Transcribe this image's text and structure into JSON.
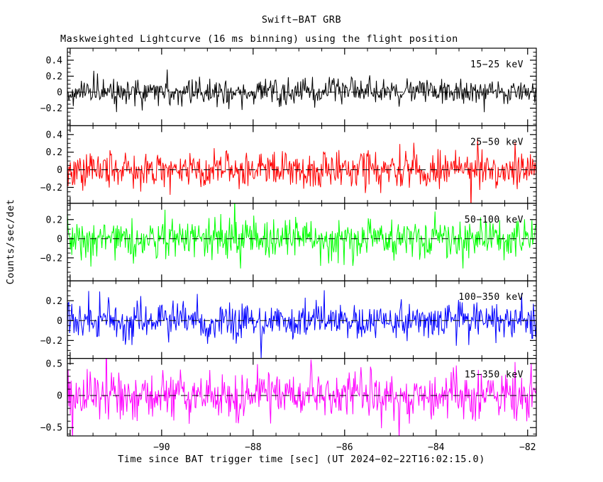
{
  "canvas": {
    "background": "#ffffff",
    "frame_color": "#000000"
  },
  "chart_data": {
    "type": "line",
    "title": "Swift−BAT GRB",
    "subtitle": "Maskweighted Lightcurve (16 ms binning) using the flight position",
    "xlabel": "Time since BAT trigger time [sec] (UT 2024−02−22T16:02:15.0)",
    "ylabel": "Counts/sec/det",
    "grid": false,
    "legend_position": "inside-top-right-per-panel",
    "x_range": [
      -92.06,
      -81.81
    ],
    "x_major_ticks": [
      -90,
      -88,
      -86,
      -84,
      -82
    ],
    "x_minor_step": 0.5,
    "bin_seconds": 0.016,
    "zero_line": {
      "style": "dashed",
      "color": "#000000"
    },
    "panels": [
      {
        "label": "15−25 keV",
        "color": "#000000",
        "ylim": [
          -0.42,
          0.55
        ],
        "y_major_ticks": [
          -0.2,
          0,
          0.2,
          0.4
        ],
        "y_minor_step": 0.05,
        "noise": {
          "mean": 0,
          "sigma": 0.085,
          "seed": 1101,
          "n": 640,
          "spike_fraction": 0.02,
          "spike_scale": 1.9
        }
      },
      {
        "label": "25−50 keV",
        "color": "#ff0000",
        "ylim": [
          -0.38,
          0.5
        ],
        "y_major_ticks": [
          -0.2,
          0,
          0.2,
          0.4
        ],
        "y_minor_step": 0.05,
        "noise": {
          "mean": 0,
          "sigma": 0.105,
          "seed": 2202,
          "n": 640,
          "spike_fraction": 0.02,
          "spike_scale": 1.9
        }
      },
      {
        "label": "50−100 keV",
        "color": "#00ff00",
        "ylim": [
          -0.44,
          0.37
        ],
        "y_major_ticks": [
          -0.2,
          0,
          0.2
        ],
        "y_minor_step": 0.05,
        "noise": {
          "mean": 0,
          "sigma": 0.105,
          "seed": 3303,
          "n": 640,
          "spike_fraction": 0.025,
          "spike_scale": 1.9
        }
      },
      {
        "label": "100−350 keV",
        "color": "#0000ff",
        "ylim": [
          -0.38,
          0.4
        ],
        "y_major_ticks": [
          -0.2,
          0,
          0.2
        ],
        "y_minor_step": 0.05,
        "noise": {
          "mean": 0,
          "sigma": 0.095,
          "seed": 4404,
          "n": 640,
          "spike_fraction": 0.02,
          "spike_scale": 1.9
        }
      },
      {
        "label": "15−350 keV",
        "color": "#ff00ff",
        "ylim": [
          -0.63,
          0.58
        ],
        "y_major_ticks": [
          -0.5,
          0,
          0.5
        ],
        "y_minor_step": 0.1,
        "noise": {
          "mean": 0,
          "sigma": 0.185,
          "seed": 5505,
          "n": 640,
          "spike_fraction": 0.025,
          "spike_scale": 1.9
        }
      }
    ]
  }
}
